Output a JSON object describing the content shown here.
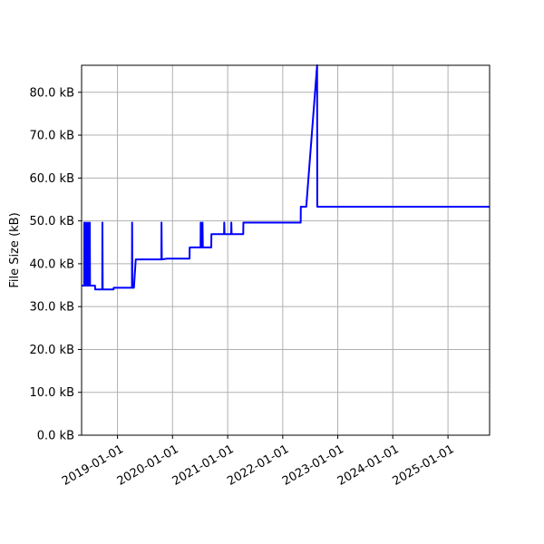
{
  "chart_data": {
    "type": "line",
    "title": "",
    "xlabel": "",
    "ylabel": "File Size (kB)",
    "xlim": [
      "2018-05-08",
      "2025-10-04"
    ],
    "ylim": [
      0,
      86.3
    ],
    "grid": true,
    "line_color": "#0000ff",
    "x_ticks": [
      "2019-01-01",
      "2020-01-01",
      "2021-01-01",
      "2022-01-01",
      "2023-01-01",
      "2024-01-01",
      "2025-01-01"
    ],
    "y_ticks": [
      0,
      10,
      20,
      30,
      40,
      50,
      60,
      70,
      80
    ],
    "y_tick_labels": [
      "0.0 kB",
      "10.0 kB",
      "20.0 kB",
      "30.0 kB",
      "40.0 kB",
      "50.0 kB",
      "60.0 kB",
      "70.0 kB",
      "80.0 kB"
    ],
    "series": [
      {
        "points": [
          [
            "2018-05-08",
            34.9
          ],
          [
            "2018-05-25",
            34.9
          ],
          [
            "2018-05-26",
            49.6
          ],
          [
            "2018-05-28",
            34.9
          ],
          [
            "2018-06-06",
            34.9
          ],
          [
            "2018-06-07",
            49.6
          ],
          [
            "2018-06-09",
            34.9
          ],
          [
            "2018-06-18",
            34.9
          ],
          [
            "2018-06-19",
            49.6
          ],
          [
            "2018-06-21",
            34.9
          ],
          [
            "2018-06-30",
            34.9
          ],
          [
            "2018-07-01",
            49.6
          ],
          [
            "2018-07-03",
            34.9
          ],
          [
            "2018-08-05",
            34.9
          ],
          [
            "2018-08-06",
            34.0
          ],
          [
            "2018-09-22",
            34.0
          ],
          [
            "2018-09-23",
            49.6
          ],
          [
            "2018-09-25",
            34.0
          ],
          [
            "2018-12-06",
            34.0
          ],
          [
            "2018-12-07",
            34.4
          ],
          [
            "2019-04-07",
            34.4
          ],
          [
            "2019-04-08",
            49.6
          ],
          [
            "2019-04-10",
            34.4
          ],
          [
            "2019-04-20",
            34.4
          ],
          [
            "2019-05-02",
            41.0
          ],
          [
            "2019-10-19",
            41.0
          ],
          [
            "2019-10-20",
            49.6
          ],
          [
            "2019-10-22",
            41.0
          ],
          [
            "2019-11-26",
            41.2
          ],
          [
            "2020-04-23",
            41.2
          ],
          [
            "2020-04-24",
            43.8
          ],
          [
            "2020-07-05",
            43.8
          ],
          [
            "2020-07-06",
            49.6
          ],
          [
            "2020-07-08",
            43.8
          ],
          [
            "2020-07-17",
            43.8
          ],
          [
            "2020-07-18",
            49.6
          ],
          [
            "2020-07-20",
            43.8
          ],
          [
            "2020-09-14",
            43.8
          ],
          [
            "2020-09-15",
            46.9
          ],
          [
            "2020-12-08",
            46.9
          ],
          [
            "2020-12-09",
            49.6
          ],
          [
            "2020-12-11",
            46.9
          ],
          [
            "2021-01-24",
            46.9
          ],
          [
            "2021-01-25",
            49.6
          ],
          [
            "2021-01-27",
            46.9
          ],
          [
            "2021-04-14",
            46.9
          ],
          [
            "2021-04-15",
            49.6
          ],
          [
            "2022-04-30",
            49.6
          ],
          [
            "2022-05-01",
            53.3
          ],
          [
            "2022-06-06",
            53.3
          ],
          [
            "2022-08-17",
            86.3
          ],
          [
            "2022-08-18",
            53.3
          ],
          [
            "2025-10-04",
            53.3
          ]
        ]
      }
    ]
  }
}
